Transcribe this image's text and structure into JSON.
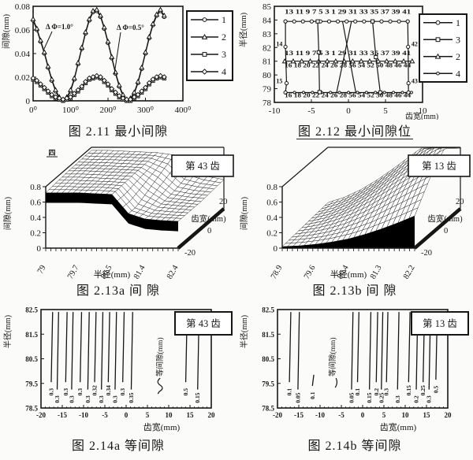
{
  "page": {
    "bg": "#fbfbf9",
    "ink": "#161616"
  },
  "figures": {
    "fig211": {
      "caption": "图 2.11 最小间隙",
      "chart_data": {
        "type": "line",
        "ylabel": "间隙(mm)",
        "ylim": [
          0,
          0.08
        ],
        "yticks": [
          "0",
          "0.02",
          "0.04",
          "0.06",
          "0.08"
        ],
        "xlim": [
          0,
          400
        ],
        "xticks": [
          0,
          100,
          200,
          300,
          400
        ],
        "xtick_labels": [
          "0⁰",
          "100⁰",
          "200⁰",
          "300⁰",
          "400⁰"
        ],
        "x": [
          0,
          10,
          20,
          30,
          40,
          50,
          60,
          70,
          80,
          90,
          100,
          110,
          120,
          130,
          140,
          150,
          160,
          170,
          180,
          190,
          200,
          210,
          220,
          230,
          240,
          250,
          260,
          270,
          280,
          290,
          300,
          310,
          320,
          330,
          340,
          350
        ],
        "series": [
          {
            "name": "1",
            "marker": "circle",
            "values": [
              0.068,
              0.06,
              0.05,
              0.04,
              0.028,
              0.017,
              0.008,
              0.002,
              0.0,
              0.002,
              0.008,
              0.018,
              0.031,
              0.044,
              0.057,
              0.068,
              0.075,
              0.076,
              0.071,
              0.061,
              0.049,
              0.036,
              0.023,
              0.012,
              0.004,
              0.0,
              0.001,
              0.006,
              0.015,
              0.027,
              0.04,
              0.053,
              0.064,
              0.072,
              0.076,
              0.071
            ]
          },
          {
            "name": "2",
            "marker": "triangle",
            "values": [
              0.068,
              0.06,
              0.05,
              0.04,
              0.028,
              0.017,
              0.008,
              0.002,
              0.0,
              0.002,
              0.008,
              0.018,
              0.031,
              0.044,
              0.057,
              0.068,
              0.075,
              0.076,
              0.071,
              0.061,
              0.049,
              0.036,
              0.023,
              0.012,
              0.004,
              0.0,
              0.001,
              0.006,
              0.015,
              0.027,
              0.04,
              0.053,
              0.064,
              0.072,
              0.076,
              0.071
            ]
          },
          {
            "name": "3",
            "marker": "square",
            "values": [
              0.018,
              0.016,
              0.013,
              0.01,
              0.007,
              0.004,
              0.002,
              0.001,
              0.0,
              0.001,
              0.002,
              0.005,
              0.008,
              0.011,
              0.015,
              0.018,
              0.019,
              0.02,
              0.019,
              0.016,
              0.013,
              0.009,
              0.006,
              0.003,
              0.001,
              0.0,
              0.0,
              0.002,
              0.004,
              0.007,
              0.01,
              0.014,
              0.017,
              0.019,
              0.02,
              0.019
            ]
          },
          {
            "name": "4",
            "marker": "diamond",
            "values": [
              0.018,
              0.016,
              0.013,
              0.01,
              0.007,
              0.004,
              0.002,
              0.001,
              0.0,
              0.001,
              0.002,
              0.005,
              0.008,
              0.011,
              0.015,
              0.018,
              0.019,
              0.02,
              0.019,
              0.016,
              0.013,
              0.009,
              0.006,
              0.003,
              0.001,
              0.0,
              0.0,
              0.002,
              0.004,
              0.007,
              0.01,
              0.014,
              0.017,
              0.019,
              0.02,
              0.019
            ]
          }
        ],
        "legend": [
          {
            "label": "1",
            "marker": "circle"
          },
          {
            "label": "2",
            "marker": "triangle"
          },
          {
            "label": "3",
            "marker": "square"
          },
          {
            "label": "4",
            "marker": "diamond"
          }
        ],
        "annotations": [
          {
            "text": "Δ Φ=1.0°",
            "points_to": "large curves"
          },
          {
            "text": "Δ Φ=0.5°",
            "points_to": "small curves"
          }
        ]
      }
    },
    "fig212": {
      "caption": "图 2.12 最小间隙位",
      "chart_data": {
        "type": "line",
        "ylabel": "半径(mm)",
        "xlabel": "齿宽(mm)",
        "ylim": [
          78,
          85
        ],
        "yticks": [
          "85",
          "84",
          "83",
          "82",
          "81",
          "80",
          "79",
          "78"
        ],
        "xlim": [
          -10,
          10
        ],
        "xticks": [
          "-10",
          "-5",
          "0",
          "5",
          "10"
        ],
        "legend": [
          {
            "label": "1",
            "marker": "circle"
          },
          {
            "label": "3",
            "marker": "square"
          },
          {
            "label": "2",
            "marker": "triangle"
          },
          {
            "label": "4",
            "marker": "dot"
          }
        ],
        "label_rows": [
          {
            "text": "13 11 9 7 5 3 1 29 31 33 35 37 39 41",
            "y": 84.45
          },
          {
            "text": "13 11 9 7 5 3 1 29 31 33 35 37 39 41",
            "y": 81.45
          },
          {
            "text": "16 18 20 22 24 26 28 56 54 52 50 48 46 44",
            "y": 80.55
          },
          {
            "text": "16 18 20 22 24 26 28 56 54 52 50 48 46 44",
            "y": 78.38
          }
        ],
        "point_labels": [
          {
            "text": "14",
            "x": -8.9,
            "y": 82.1
          },
          {
            "text": "42",
            "x": 8.5,
            "y": 82.1
          },
          {
            "text": "15",
            "x": -8.9,
            "y": 79.4
          },
          {
            "text": "43",
            "x": 8.5,
            "y": 79.4
          }
        ],
        "series": [
          {
            "name": "1",
            "marker": "circle",
            "kind": "hline",
            "y": 83.9,
            "x1": -8.5,
            "x2": 8.0,
            "n": 15
          },
          {
            "name": "2",
            "marker": "triangle",
            "kind": "hline",
            "y": 81.0,
            "x1": -8.6,
            "x2": 8.6,
            "n": 16
          },
          {
            "name": "4",
            "marker": "dot",
            "kind": "hline",
            "y": 78.72,
            "x1": -8.5,
            "x2": 8.5,
            "n": 15
          },
          {
            "name": "left-edge",
            "marker": "circle",
            "kind": "poly",
            "points": [
              [
                -8.5,
                83.9
              ],
              [
                -8.5,
                82.05
              ],
              [
                -8.35,
                79.4
              ],
              [
                -8.5,
                78.72
              ]
            ]
          },
          {
            "name": "right-edge",
            "marker": "circle",
            "kind": "poly",
            "points": [
              [
                8.0,
                83.9
              ],
              [
                8.05,
                82.05
              ],
              [
                8.1,
                79.4
              ],
              [
                8.1,
                78.72
              ]
            ]
          },
          {
            "name": "3",
            "marker": "square",
            "kind": "poly",
            "points": [
              [
                -4.15,
                83.9
              ],
              [
                -4.0,
                81.65
              ],
              [
                -3.9,
                78.75
              ]
            ]
          },
          {
            "name": "cross-a",
            "marker": "none",
            "kind": "poly",
            "points": [
              [
                -1.6,
                78.72
              ],
              [
                0.4,
                83.9
              ]
            ]
          },
          {
            "name": "cross-b",
            "marker": "none",
            "kind": "poly",
            "points": [
              [
                1.0,
                78.72
              ],
              [
                -0.8,
                83.9
              ]
            ]
          },
          {
            "name": "drop-right",
            "marker": "square",
            "kind": "poly",
            "points": [
              [
                3.25,
                83.9
              ],
              [
                3.7,
                81.3
              ],
              [
                4.3,
                78.72
              ]
            ]
          }
        ]
      }
    },
    "fig213a": {
      "caption": "图 2.13a 间 隙",
      "badge": "第 43 齿",
      "corner_mark": "四",
      "chart_data": {
        "type": "surface3d",
        "zlabel": "间隙(mm)",
        "zticks": [
          "0",
          "0.2",
          "0.4",
          "0.6",
          "0.8"
        ],
        "zlim": [
          0,
          0.8
        ],
        "xlabel": "半径(mm)",
        "xtick_labels": [
          "79",
          "79.7",
          "80.5",
          "81.4",
          "82.4"
        ],
        "ylabel": "齿宽(mm)",
        "ytick_labels": [
          "-20",
          "0",
          "20"
        ],
        "skirt": "band",
        "grid_tooth_width": [
          -20,
          -13,
          -6,
          0,
          6,
          13,
          20
        ],
        "grid_radius": [
          79,
          79.4,
          79.8,
          80.3,
          80.7,
          81.1,
          81.5,
          82.0,
          82.4
        ],
        "z_grid": [
          [
            0.72,
            0.72,
            0.72,
            0.71,
            0.7,
            0.45,
            0.38,
            0.36,
            0.35
          ],
          [
            0.73,
            0.73,
            0.72,
            0.72,
            0.7,
            0.45,
            0.38,
            0.36,
            0.35
          ],
          [
            0.74,
            0.74,
            0.73,
            0.72,
            0.71,
            0.5,
            0.39,
            0.37,
            0.35
          ],
          [
            0.75,
            0.75,
            0.74,
            0.73,
            0.72,
            0.55,
            0.4,
            0.37,
            0.35
          ],
          [
            0.75,
            0.75,
            0.74,
            0.73,
            0.72,
            0.6,
            0.42,
            0.38,
            0.36
          ],
          [
            0.76,
            0.75,
            0.75,
            0.74,
            0.73,
            0.65,
            0.45,
            0.4,
            0.37
          ],
          [
            0.76,
            0.76,
            0.75,
            0.74,
            0.73,
            0.7,
            0.5,
            0.42,
            0.38
          ]
        ]
      }
    },
    "fig213b": {
      "caption": "图 2.13b 间 隙",
      "badge": "第 13 齿",
      "chart_data": {
        "type": "surface3d",
        "zlabel": "间隙(mm)",
        "zticks": [
          "0",
          "0.2",
          "0.4",
          "0.6",
          "0.8"
        ],
        "zlim": [
          0,
          0.8
        ],
        "xlabel": "半径(mm)",
        "xtick_labels": [
          "78.9",
          "79.6",
          "80.4",
          "81.3",
          "82.2"
        ],
        "ylabel": "齿宽(mm)",
        "ytick_labels": [
          "-20",
          "0",
          "20"
        ],
        "skirt": "floor",
        "grid_tooth_width": [
          -20,
          -13,
          -6,
          0,
          6,
          13,
          20
        ],
        "grid_radius": [
          78.9,
          79.3,
          79.7,
          80.2,
          80.6,
          81.0,
          81.4,
          81.8,
          82.2
        ],
        "z_grid": [
          [
            0.02,
            0.03,
            0.05,
            0.08,
            0.12,
            0.18,
            0.25,
            0.33,
            0.42
          ],
          [
            0.03,
            0.05,
            0.08,
            0.13,
            0.2,
            0.28,
            0.38,
            0.48,
            0.58
          ],
          [
            0.04,
            0.07,
            0.12,
            0.19,
            0.28,
            0.39,
            0.51,
            0.63,
            0.74
          ],
          [
            0.05,
            0.09,
            0.16,
            0.25,
            0.36,
            0.49,
            0.62,
            0.75,
            0.87
          ],
          [
            0.06,
            0.11,
            0.19,
            0.3,
            0.43,
            0.57,
            0.71,
            0.85,
            0.97
          ],
          [
            0.07,
            0.13,
            0.22,
            0.34,
            0.48,
            0.63,
            0.78,
            0.93,
            1.05
          ],
          [
            0.08,
            0.15,
            0.25,
            0.38,
            0.53,
            0.69,
            0.85,
            1.0,
            1.12
          ]
        ]
      }
    },
    "fig214a": {
      "caption": "图 2.14a 等间隙",
      "badge": "第 43 齿",
      "chart_data": {
        "type": "vlines",
        "ylabel": "半径(mm)",
        "xlabel": "齿宽(mm)",
        "ylim": [
          78.5,
          82.5
        ],
        "yticks": [
          "82.5",
          "81.5",
          "80.5",
          "79.5",
          "78.5"
        ],
        "xlim": [
          -20,
          20
        ],
        "xticks": [
          "-20",
          "-15",
          "-10",
          "-5",
          "0",
          "5",
          "10",
          "15",
          "20"
        ],
        "annotation": {
          "text": "等间隙(mm)",
          "x": 8,
          "squiggle": true
        },
        "lines": [
          {
            "x": -17.6,
            "label": "0.3"
          },
          {
            "x": -16.2,
            "label": "0.3"
          },
          {
            "x": -14.2,
            "label": "0.3"
          },
          {
            "x": -12.8,
            "label": "0.3"
          },
          {
            "x": -10.8,
            "label": "0.3"
          },
          {
            "x": -9.0,
            "label": "0.3"
          },
          {
            "x": -7.4,
            "label": "0.32"
          },
          {
            "x": -5.8,
            "label": "0.3"
          },
          {
            "x": -4.2,
            "label": "0.34"
          },
          {
            "x": -2.6,
            "label": "0.3"
          },
          {
            "x": -0.8,
            "label": "0.3"
          },
          {
            "x": 1.2,
            "label": "0.35"
          },
          {
            "x": 14.0,
            "label": "0.5"
          },
          {
            "x": 16.8,
            "label": "0.15"
          }
        ]
      }
    },
    "fig214b": {
      "caption": "图 2.14b 等间隙",
      "badge": "第 13 齿",
      "chart_data": {
        "type": "vlines",
        "ylabel": "半径(mm)",
        "xlabel": "齿宽(mm)",
        "ylim": [
          78.5,
          82.5
        ],
        "yticks": [
          "82.5",
          "81.5",
          "80.5",
          "79.5",
          "78.5"
        ],
        "xlim": [
          -20,
          20
        ],
        "xticks": [
          "-20",
          "-15",
          "-10",
          "-5",
          "0",
          "5",
          "10",
          "15",
          "20"
        ],
        "annotation": {
          "text": "等间隙(mm)",
          "x": -7,
          "squiggle": false
        },
        "lines": [
          {
            "x": -17.2,
            "label": "0.1"
          },
          {
            "x": -15.2,
            "label": "0.05"
          },
          {
            "x": -11.8,
            "label": "0.1",
            "short": true
          },
          {
            "x": -2.6,
            "label": "0.05"
          },
          {
            "x": -1.2,
            "label": "0.1"
          },
          {
            "x": 1.6,
            "label": "0.15"
          },
          {
            "x": 3.2,
            "label": "0.2"
          },
          {
            "x": 4.4,
            "label": "0.25"
          },
          {
            "x": 5.6,
            "label": "0.3"
          },
          {
            "x": 8.2,
            "label": "0.3"
          },
          {
            "x": 10.8,
            "label": "0.15"
          },
          {
            "x": 12.6,
            "label": "0.2"
          },
          {
            "x": 14.2,
            "label": "0.25"
          },
          {
            "x": 15.6,
            "label": "0.3"
          },
          {
            "x": 17.2,
            "label": "0.5",
            "short2": true
          }
        ]
      }
    }
  }
}
